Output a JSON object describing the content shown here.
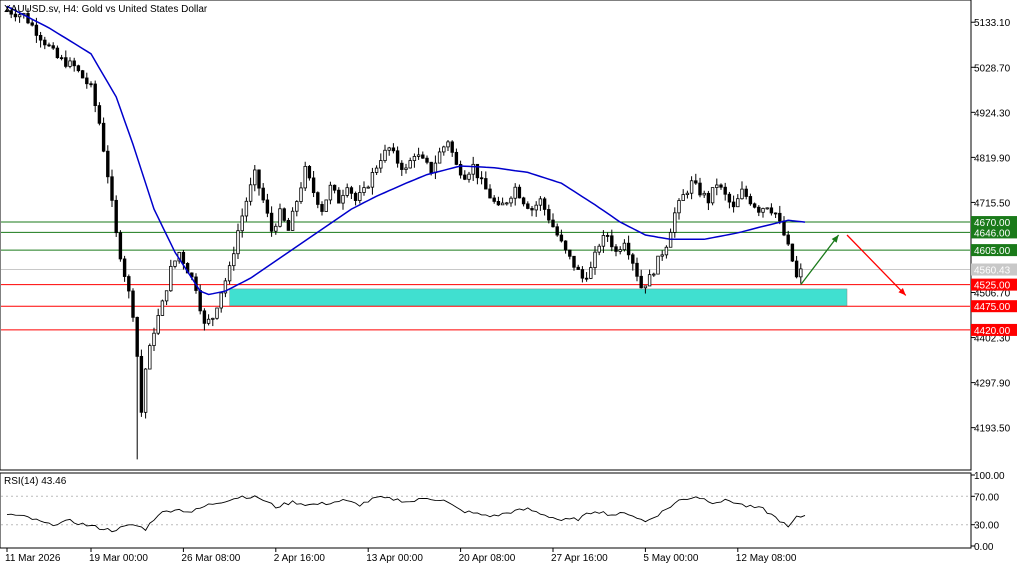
{
  "chart_data": [
    {
      "type": "candlestick",
      "title": "XAUUSD.sv, H4:  Gold vs United States Dollar",
      "y_ticks": [
        "5133.10",
        "5028.70",
        "4924.30",
        "4819.90",
        "4715.50",
        "4506.70",
        "4402.30",
        "4297.90",
        "4193.50"
      ],
      "y_tick_values": [
        5133.1,
        5028.7,
        4924.3,
        4819.9,
        4715.5,
        4506.7,
        4402.3,
        4297.9,
        4193.5
      ],
      "ylim": [
        4100,
        5180
      ],
      "x_ticks": [
        "11 Mar 2026",
        "19 Mar 00:00",
        "26 Mar 08:00",
        "2 Apr 16:00",
        "13 Apr 00:00",
        "20 Apr 08:00",
        "27 Apr 16:00",
        "5 May 00:00",
        "12 May 08:00"
      ],
      "x_tick_index": [
        0,
        20,
        42,
        64,
        86,
        108,
        130,
        152,
        174
      ],
      "candle_count": 190,
      "close_path": [
        [
          0,
          5160
        ],
        [
          4,
          5150
        ],
        [
          8,
          5100
        ],
        [
          12,
          5050
        ],
        [
          16,
          5030
        ],
        [
          20,
          4980
        ],
        [
          22,
          4900
        ],
        [
          24,
          4780
        ],
        [
          26,
          4640
        ],
        [
          28,
          4550
        ],
        [
          30,
          4460
        ],
        [
          31,
          4360
        ],
        [
          32,
          4230
        ],
        [
          33,
          4330
        ],
        [
          35,
          4420
        ],
        [
          37,
          4480
        ],
        [
          39,
          4560
        ],
        [
          41,
          4600
        ],
        [
          43,
          4560
        ],
        [
          45,
          4520
        ],
        [
          47,
          4430
        ],
        [
          49,
          4450
        ],
        [
          51,
          4510
        ],
        [
          53,
          4560
        ],
        [
          55,
          4650
        ],
        [
          57,
          4720
        ],
        [
          59,
          4780
        ],
        [
          61,
          4720
        ],
        [
          63,
          4650
        ],
        [
          65,
          4690
        ],
        [
          67,
          4650
        ],
        [
          69,
          4720
        ],
        [
          71,
          4790
        ],
        [
          73,
          4740
        ],
        [
          75,
          4700
        ],
        [
          77,
          4750
        ],
        [
          79,
          4720
        ],
        [
          81,
          4760
        ],
        [
          83,
          4720
        ],
        [
          85,
          4740
        ],
        [
          87,
          4780
        ],
        [
          89,
          4820
        ],
        [
          91,
          4840
        ],
        [
          93,
          4810
        ],
        [
          95,
          4790
        ],
        [
          97,
          4830
        ],
        [
          99,
          4810
        ],
        [
          101,
          4790
        ],
        [
          103,
          4830
        ],
        [
          105,
          4860
        ],
        [
          107,
          4800
        ],
        [
          109,
          4780
        ],
        [
          111,
          4800
        ],
        [
          113,
          4760
        ],
        [
          115,
          4730
        ],
        [
          117,
          4700
        ],
        [
          119,
          4720
        ],
        [
          121,
          4750
        ],
        [
          123,
          4720
        ],
        [
          125,
          4700
        ],
        [
          127,
          4720
        ],
        [
          129,
          4680
        ],
        [
          131,
          4640
        ],
        [
          133,
          4600
        ],
        [
          135,
          4570
        ],
        [
          137,
          4540
        ],
        [
          139,
          4560
        ],
        [
          141,
          4620
        ],
        [
          143,
          4640
        ],
        [
          145,
          4600
        ],
        [
          147,
          4630
        ],
        [
          149,
          4580
        ],
        [
          151,
          4520
        ],
        [
          153,
          4540
        ],
        [
          155,
          4580
        ],
        [
          157,
          4620
        ],
        [
          159,
          4690
        ],
        [
          161,
          4730
        ],
        [
          163,
          4760
        ],
        [
          165,
          4740
        ],
        [
          167,
          4720
        ],
        [
          169,
          4760
        ],
        [
          171,
          4730
        ],
        [
          173,
          4700
        ],
        [
          175,
          4740
        ],
        [
          177,
          4720
        ],
        [
          179,
          4700
        ],
        [
          181,
          4710
        ],
        [
          183,
          4690
        ],
        [
          185,
          4640
        ],
        [
          187,
          4580
        ],
        [
          188,
          4540
        ],
        [
          189,
          4555
        ]
      ],
      "ma_path": [
        [
          0,
          5170
        ],
        [
          10,
          5120
        ],
        [
          20,
          5060
        ],
        [
          26,
          4960
        ],
        [
          30,
          4850
        ],
        [
          35,
          4700
        ],
        [
          40,
          4600
        ],
        [
          44,
          4540
        ],
        [
          46,
          4510
        ],
        [
          48,
          4502
        ],
        [
          52,
          4510
        ],
        [
          58,
          4540
        ],
        [
          64,
          4580
        ],
        [
          70,
          4620
        ],
        [
          76,
          4660
        ],
        [
          82,
          4700
        ],
        [
          88,
          4730
        ],
        [
          95,
          4760
        ],
        [
          100,
          4780
        ],
        [
          108,
          4800
        ],
        [
          116,
          4796
        ],
        [
          124,
          4785
        ],
        [
          132,
          4760
        ],
        [
          140,
          4710
        ],
        [
          146,
          4670
        ],
        [
          152,
          4640
        ],
        [
          158,
          4630
        ],
        [
          166,
          4630
        ],
        [
          174,
          4645
        ],
        [
          180,
          4660
        ],
        [
          186,
          4674
        ],
        [
          190,
          4670
        ]
      ],
      "levels": [
        {
          "value": 4670,
          "label": "4670.00",
          "color": "#1a7a1a"
        },
        {
          "value": 4646,
          "label": "4646.00",
          "color": "#1a7a1a"
        },
        {
          "value": 4605,
          "label": "4605.00",
          "color": "#1a7a1a"
        },
        {
          "value": 4525,
          "label": "4525.00",
          "color": "#ff0000"
        },
        {
          "value": 4475,
          "label": "4475.00",
          "color": "#ff0000"
        },
        {
          "value": 4420,
          "label": "4420.00",
          "color": "#ff0000"
        }
      ],
      "current_price": {
        "value": 4560,
        "label": "4560.43",
        "color": "#c8c8c8"
      },
      "zone": {
        "from": 4475,
        "to": 4515,
        "x_start": 53,
        "x_end": 200,
        "color": "#40e0d0"
      },
      "arrows": [
        {
          "from": [
            189,
            4525
          ],
          "to": [
            198,
            4640
          ],
          "color": "#1a7a1a"
        },
        {
          "from": [
            200,
            4640
          ],
          "to": [
            214,
            4500
          ],
          "color": "#ff0000"
        }
      ],
      "ma_color": "#0000cc",
      "candle_color": "#000000",
      "grid": false
    },
    {
      "type": "line",
      "title": "RSI(14) 43.46",
      "y_ticks": [
        "100.00",
        "70.00",
        "30.00",
        "0.00"
      ],
      "y_tick_values": [
        100,
        70,
        30,
        0
      ],
      "ylim": [
        0,
        100
      ],
      "levels": [
        70,
        30
      ],
      "series_path": [
        [
          0,
          45
        ],
        [
          5,
          40
        ],
        [
          10,
          30
        ],
        [
          15,
          35
        ],
        [
          20,
          28
        ],
        [
          25,
          22
        ],
        [
          30,
          30
        ],
        [
          33,
          24
        ],
        [
          36,
          45
        ],
        [
          40,
          52
        ],
        [
          44,
          48
        ],
        [
          48,
          58
        ],
        [
          52,
          64
        ],
        [
          56,
          70
        ],
        [
          60,
          68
        ],
        [
          64,
          55
        ],
        [
          68,
          62
        ],
        [
          72,
          58
        ],
        [
          76,
          60
        ],
        [
          80,
          64
        ],
        [
          84,
          58
        ],
        [
          88,
          68
        ],
        [
          92,
          66
        ],
        [
          96,
          62
        ],
        [
          100,
          68
        ],
        [
          104,
          64
        ],
        [
          108,
          50
        ],
        [
          112,
          45
        ],
        [
          116,
          42
        ],
        [
          120,
          48
        ],
        [
          124,
          52
        ],
        [
          128,
          44
        ],
        [
          132,
          36
        ],
        [
          136,
          38
        ],
        [
          140,
          50
        ],
        [
          144,
          44
        ],
        [
          148,
          46
        ],
        [
          152,
          34
        ],
        [
          156,
          48
        ],
        [
          160,
          64
        ],
        [
          164,
          70
        ],
        [
          168,
          62
        ],
        [
          172,
          64
        ],
        [
          176,
          56
        ],
        [
          180,
          52
        ],
        [
          184,
          36
        ],
        [
          186,
          26
        ],
        [
          188,
          40
        ],
        [
          190,
          43
        ]
      ],
      "color": "#000000"
    }
  ]
}
